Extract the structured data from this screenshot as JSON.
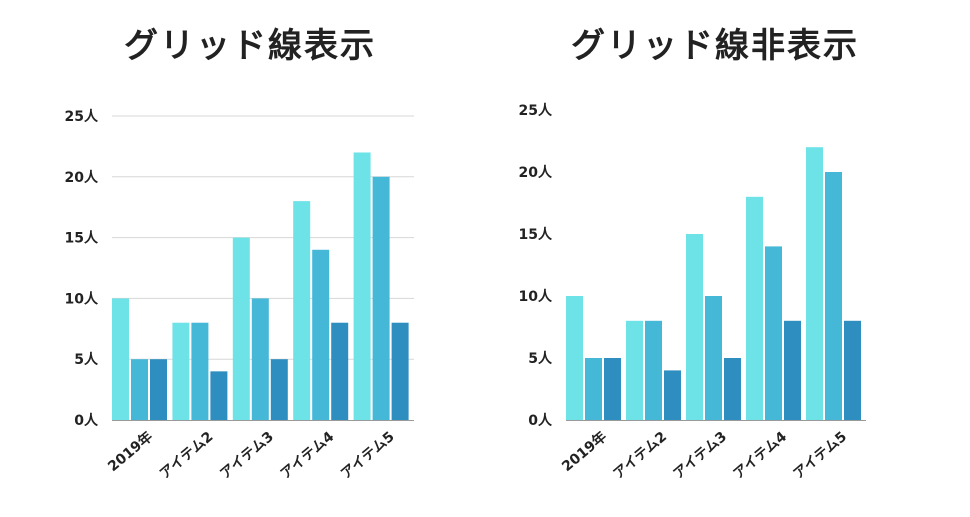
{
  "colors": {
    "series1": "#6de3e8",
    "series2": "#45b8d8",
    "series3": "#2e8ebf",
    "grid": "#d7d7d7",
    "axis": "#9a9a9a"
  },
  "chart_data": [
    {
      "type": "bar",
      "title": "グリッド線表示",
      "grid": true,
      "categories": [
        "2019年",
        "アイテム2",
        "アイテム3",
        "アイテム4",
        "アイテム5"
      ],
      "series": [
        {
          "values": [
            10,
            8,
            15,
            18,
            22
          ]
        },
        {
          "values": [
            5,
            8,
            10,
            14,
            20
          ]
        },
        {
          "values": [
            5,
            4,
            5,
            8,
            8
          ]
        }
      ],
      "ylim": [
        0,
        25
      ],
      "yticks": [
        "0人",
        "5人",
        "10人",
        "15人",
        "20人",
        "25人"
      ]
    },
    {
      "type": "bar",
      "title": "グリッド線非表示",
      "grid": false,
      "categories": [
        "2019年",
        "アイテム2",
        "アイテム3",
        "アイテム4",
        "アイテム5"
      ],
      "series": [
        {
          "values": [
            10,
            8,
            15,
            18,
            22
          ]
        },
        {
          "values": [
            5,
            8,
            10,
            14,
            20
          ]
        },
        {
          "values": [
            5,
            4,
            5,
            8,
            8
          ]
        }
      ],
      "ylim": [
        0,
        25
      ],
      "yticks": [
        "0人",
        "5人",
        "10人",
        "15人",
        "20人",
        "25人"
      ]
    }
  ]
}
